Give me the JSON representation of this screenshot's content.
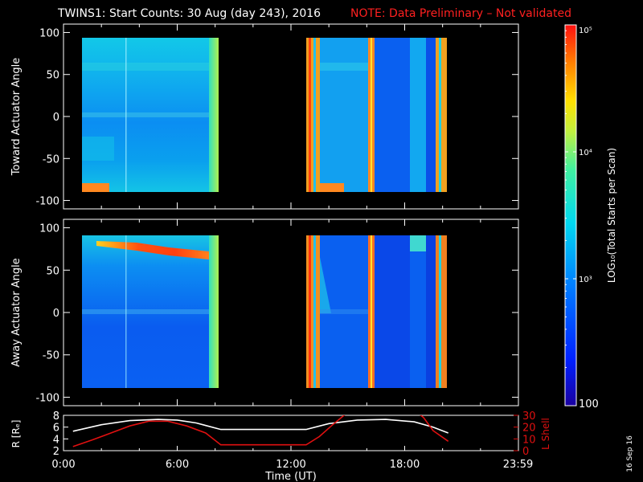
{
  "title": {
    "text": "TWINS1: Start Counts: 30 Aug (day 243), 2016",
    "note": "NOTE: Data Preliminary – Not validated",
    "note_color": "#ff2020"
  },
  "colors": {
    "background": "#000000",
    "axes": "#ffffff",
    "red_trace": "#e01010",
    "white_trace": "#ffffff"
  },
  "stamp": "16 Sep 16",
  "colorbar": {
    "label": "LOG₁₀(Total Starts per Scan)",
    "ticks": [
      {
        "value": 100,
        "label": "100"
      },
      {
        "value": 1000,
        "label": "10³"
      },
      {
        "value": 10000,
        "label": "10⁴"
      },
      {
        "value": 100000,
        "label": "10⁵"
      }
    ],
    "range_log10": [
      2,
      5
    ]
  },
  "chart_data": [
    {
      "type": "heatmap",
      "panel": "toward",
      "ylabel": "Toward Actuator Angle",
      "ylim": [
        -110,
        110
      ],
      "y_ticks": [
        -100,
        -50,
        0,
        50,
        100
      ],
      "xlim_hours": [
        0,
        24
      ],
      "data_blocks_hours": [
        [
          0.5,
          8.25
        ],
        [
          12.75,
          20.3
        ]
      ],
      "angle_range": [
        -88,
        90
      ],
      "typical_log10_counts": 3.0
    },
    {
      "type": "heatmap",
      "panel": "away",
      "ylabel": "Away Actuator Angle",
      "ylim": [
        -110,
        110
      ],
      "y_ticks": [
        -100,
        -50,
        0,
        50,
        100
      ],
      "xlim_hours": [
        0,
        24
      ],
      "data_blocks_hours": [
        [
          0.5,
          8.25
        ],
        [
          12.75,
          20.3
        ]
      ],
      "angle_range": [
        -88,
        90
      ],
      "typical_log10_counts": 2.8
    },
    {
      "type": "line",
      "panel": "orbit",
      "xlabel": "Time (UT)",
      "ylabel_left": "R [Rₑ]",
      "ylabel_right": "L Shell",
      "xlim_hours": [
        0,
        24
      ],
      "x_ticks": [
        {
          "hour": 0.0,
          "label": "0:00"
        },
        {
          "hour": 6.0,
          "label": "6:00"
        },
        {
          "hour": 12.0,
          "label": "12:00"
        },
        {
          "hour": 18.0,
          "label": "18:00"
        },
        {
          "hour": 23.98,
          "label": "23:59"
        }
      ],
      "left_ylim": [
        2,
        8
      ],
      "left_ticks": [
        2,
        4,
        6,
        8
      ],
      "right_ylim": [
        0,
        30
      ],
      "right_ticks": [
        0,
        10,
        20,
        30
      ],
      "series": [
        {
          "name": "R",
          "axis": "left",
          "color": "#ffffff",
          "x": [
            0.5,
            2.0,
            3.5,
            5.0,
            6.0,
            7.0,
            8.3,
            10.0,
            12.0,
            12.8,
            14.0,
            15.5,
            17.0,
            18.5,
            19.5,
            20.3
          ],
          "y": [
            5.3,
            6.4,
            7.1,
            7.3,
            7.2,
            6.7,
            5.6,
            5.6,
            5.6,
            5.6,
            6.6,
            7.2,
            7.3,
            6.9,
            6.0,
            5.0
          ]
        },
        {
          "name": "L Shell",
          "axis": "right",
          "color": "#e01010",
          "x": [
            0.5,
            1.5,
            2.5,
            3.5,
            4.5,
            5.5,
            6.5,
            7.5,
            8.3,
            10.0,
            12.0,
            12.8,
            13.5,
            14.2,
            14.8,
            15.0,
            18.7,
            19.0,
            19.5,
            20.3
          ],
          "y": [
            3.5,
            9,
            15,
            21,
            25,
            25,
            21,
            15,
            5,
            5,
            5,
            5,
            12,
            22,
            30,
            32,
            32,
            28,
            17,
            8
          ]
        }
      ]
    }
  ]
}
